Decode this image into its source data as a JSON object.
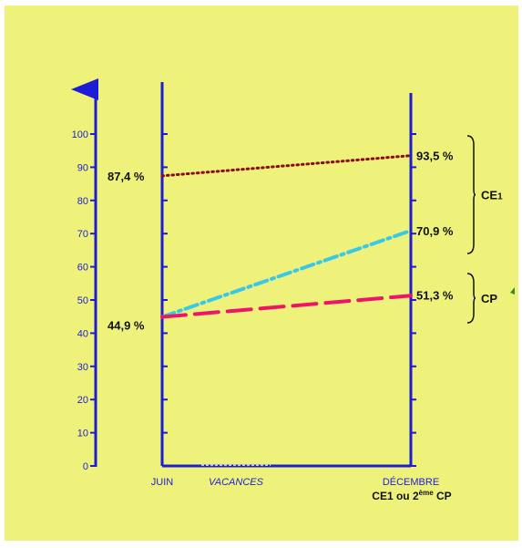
{
  "chart_data": {
    "type": "line",
    "title": "",
    "xlabel": "",
    "ylabel": "",
    "ylim": [
      0,
      100
    ],
    "y_ticks": [
      0,
      10,
      20,
      30,
      40,
      50,
      60,
      70,
      80,
      90,
      100
    ],
    "categories": [
      "JUIN",
      "DÉCEMBRE"
    ],
    "x_sublabel": "CE1 ou 2ème CP",
    "vacation_label": "VACANCES",
    "grid": false,
    "series": [
      {
        "values": [
          87.4,
          93.5
        ],
        "labels": [
          "87,4 %",
          "93,5 %"
        ],
        "color": "#8b0a14",
        "style": "dotted"
      },
      {
        "values": [
          44.9,
          70.9
        ],
        "labels": [
          "",
          "70,9 %"
        ],
        "color": "#39c8e8",
        "style": "dash-dot"
      },
      {
        "values": [
          44.9,
          51.3
        ],
        "labels": [
          "44,9 %",
          "51,3 %"
        ],
        "color": "#f01466",
        "style": "dashed"
      }
    ],
    "groups": [
      {
        "label": "CE1",
        "range": [
          70.9,
          93.5
        ]
      },
      {
        "label": "CP",
        "range": [
          51.3,
          51.3
        ]
      }
    ]
  },
  "colors": {
    "background": "#eef27a",
    "axis": "#1d1dd6"
  }
}
